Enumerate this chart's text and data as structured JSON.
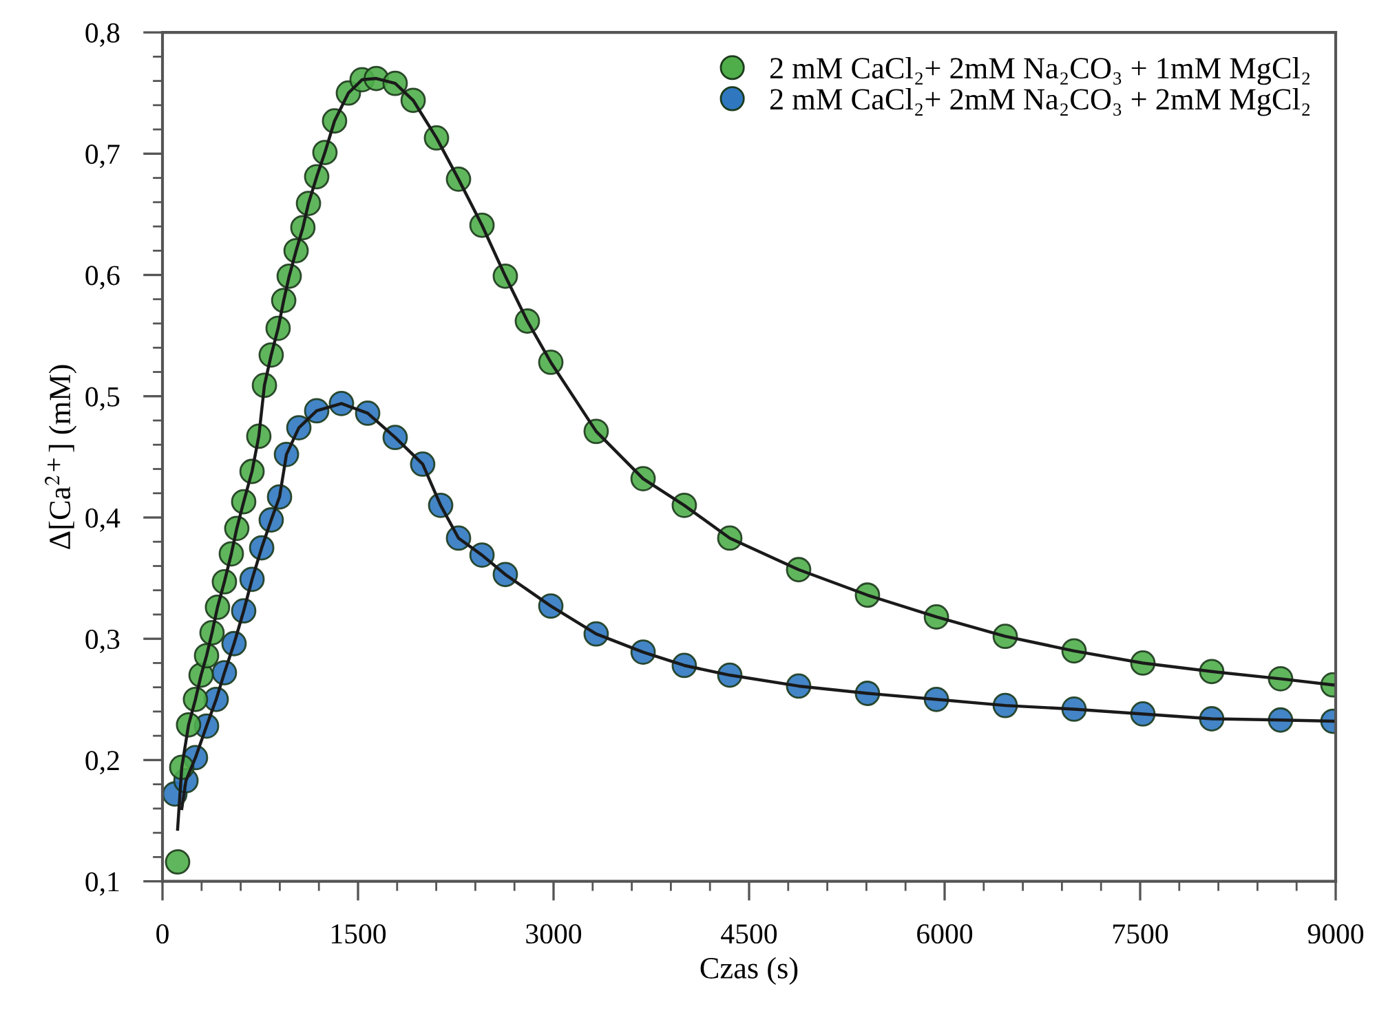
{
  "chart_data": {
    "type": "scatter",
    "xlabel": "Czas (s)",
    "ylabel": "Δ[Ca$^{2+}$] (mM)",
    "xlim": [
      0,
      9000
    ],
    "xticks": [
      0,
      1500,
      3000,
      4500,
      6000,
      7500,
      9000
    ],
    "ylim": [
      0.1,
      0.8
    ],
    "yticks": [
      {
        "value": 0.1,
        "label": "0,1"
      },
      {
        "value": 0.2,
        "label": "0,2"
      },
      {
        "value": 0.3,
        "label": "0,3"
      },
      {
        "value": 0.4,
        "label": "0,4"
      },
      {
        "value": 0.5,
        "label": "0,5"
      },
      {
        "value": 0.6,
        "label": "0,6"
      },
      {
        "value": 0.7,
        "label": "0,7"
      },
      {
        "value": 0.8,
        "label": "0,8"
      }
    ],
    "grid": false,
    "legend": "top right",
    "marker": "circle",
    "series": [
      {
        "name": "2 mM CaCl₂+ 2mM Na₂CO₃ + 1mM MgCl₂",
        "color": "#4fae4a",
        "x": [
          116,
          148,
          200,
          253,
          296,
          338,
          380,
          422,
          475,
          528,
          570,
          623,
          687,
          739,
          782,
          834,
          887,
          930,
          972,
          1025,
          1077,
          1120,
          1183,
          1246,
          1320,
          1426,
          1531,
          1640,
          1785,
          1923,
          2102,
          2271,
          2451,
          2630,
          2799,
          2979,
          3327,
          3687,
          4003,
          4352,
          4880,
          5408,
          5937,
          6465,
          6993,
          7521,
          8049,
          8577,
          8979
        ],
        "values": [
          0.116,
          0.194,
          0.229,
          0.25,
          0.27,
          0.286,
          0.305,
          0.326,
          0.347,
          0.37,
          0.391,
          0.413,
          0.438,
          0.467,
          0.509,
          0.534,
          0.556,
          0.579,
          0.599,
          0.62,
          0.639,
          0.659,
          0.681,
          0.701,
          0.727,
          0.75,
          0.761,
          0.762,
          0.758,
          0.744,
          0.713,
          0.679,
          0.641,
          0.599,
          0.562,
          0.528,
          0.471,
          0.432,
          0.41,
          0.383,
          0.357,
          0.336,
          0.318,
          0.302,
          0.29,
          0.28,
          0.273,
          0.267,
          0.262
        ]
      },
      {
        "name": "2 mM CaCl₂+ 2mM Na₂CO₃ + 2mM MgCl₂",
        "color": "#2f78c0",
        "x": [
          95,
          180,
          253,
          338,
          412,
          475,
          549,
          623,
          687,
          761,
          834,
          898,
          951,
          1046,
          1183,
          1373,
          1574,
          1785,
          1996,
          2134,
          2271,
          2451,
          2630,
          2979,
          3327,
          3687,
          4003,
          4352,
          4880,
          5408,
          5937,
          6465,
          6993,
          7521,
          8049,
          8577,
          8979
        ],
        "values": [
          0.172,
          0.183,
          0.202,
          0.228,
          0.25,
          0.272,
          0.296,
          0.323,
          0.349,
          0.375,
          0.398,
          0.417,
          0.452,
          0.474,
          0.488,
          0.494,
          0.486,
          0.466,
          0.444,
          0.41,
          0.383,
          0.369,
          0.353,
          0.327,
          0.304,
          0.289,
          0.278,
          0.27,
          0.261,
          0.255,
          0.25,
          0.245,
          0.242,
          0.238,
          0.234,
          0.233,
          0.232
        ]
      },
      {
        "type": "line",
        "marker": "none",
        "color": "#1a1a1a",
        "x": [
          116,
          148,
          200,
          253,
          296,
          338,
          380,
          422,
          475,
          528,
          570,
          623,
          687,
          739,
          782,
          834,
          887,
          930,
          972,
          1025,
          1077,
          1120,
          1183,
          1246,
          1320,
          1426,
          1531,
          1640,
          1785,
          1923,
          2102,
          2271,
          2451,
          2630,
          2799,
          2979,
          3327,
          3687,
          4003,
          4352,
          4880,
          5408,
          5937,
          6465,
          6993,
          7521,
          8049,
          8577,
          8979
        ],
        "values": [
          0.143,
          0.194,
          0.229,
          0.25,
          0.27,
          0.286,
          0.305,
          0.326,
          0.347,
          0.37,
          0.391,
          0.413,
          0.438,
          0.467,
          0.509,
          0.534,
          0.556,
          0.579,
          0.599,
          0.62,
          0.639,
          0.659,
          0.681,
          0.701,
          0.727,
          0.75,
          0.761,
          0.762,
          0.758,
          0.744,
          0.713,
          0.679,
          0.641,
          0.599,
          0.562,
          0.528,
          0.471,
          0.432,
          0.41,
          0.383,
          0.357,
          0.336,
          0.318,
          0.302,
          0.29,
          0.28,
          0.273,
          0.267,
          0.262
        ]
      },
      {
        "type": "line",
        "marker": "none",
        "color": "#1a1a1a",
        "x": [
          148,
          180,
          253,
          338,
          412,
          475,
          549,
          623,
          687,
          761,
          834,
          898,
          951,
          1046,
          1183,
          1373,
          1574,
          1785,
          1996,
          2134,
          2271,
          2451,
          2630,
          2979,
          3327,
          3687,
          4003,
          4352,
          4880,
          5408,
          5937,
          6465,
          6993,
          7521,
          8049,
          8577,
          8979
        ],
        "values": [
          0.16,
          0.183,
          0.202,
          0.228,
          0.25,
          0.272,
          0.296,
          0.323,
          0.349,
          0.375,
          0.398,
          0.417,
          0.452,
          0.474,
          0.488,
          0.494,
          0.486,
          0.466,
          0.444,
          0.41,
          0.383,
          0.369,
          0.353,
          0.327,
          0.304,
          0.289,
          0.278,
          0.27,
          0.261,
          0.255,
          0.25,
          0.245,
          0.242,
          0.238,
          0.234,
          0.233,
          0.232
        ]
      }
    ]
  }
}
